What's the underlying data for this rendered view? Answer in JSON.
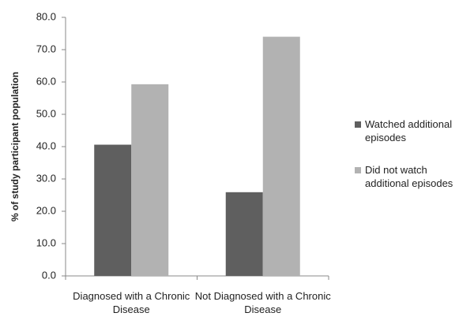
{
  "chart_data": {
    "type": "bar",
    "y_label": "% of study participant population",
    "categories": [
      "Diagnosed with a Chronic Disease",
      "Not Diagnosed with a Chronic Disease"
    ],
    "series": [
      {
        "name": "Watched additional episodes",
        "color": "#5f5f5f",
        "values": [
          40.6,
          25.9
        ]
      },
      {
        "name": "Did not watch additional episodes",
        "color": "#b2b2b2",
        "values": [
          59.3,
          74.0
        ]
      }
    ],
    "ylim": [
      0,
      80
    ],
    "yticks": [
      {
        "value": 0,
        "label": "0.0"
      },
      {
        "value": 10,
        "label": "10.0"
      },
      {
        "value": 20,
        "label": "20.0"
      },
      {
        "value": 30,
        "label": "30.0"
      },
      {
        "value": 40,
        "label": "40.0"
      },
      {
        "value": 50,
        "label": "50.0"
      },
      {
        "value": 60,
        "label": "60.0"
      },
      {
        "value": 70,
        "label": "70.0"
      },
      {
        "value": 80,
        "label": "80.0"
      }
    ],
    "grid": false,
    "legend": "right"
  }
}
